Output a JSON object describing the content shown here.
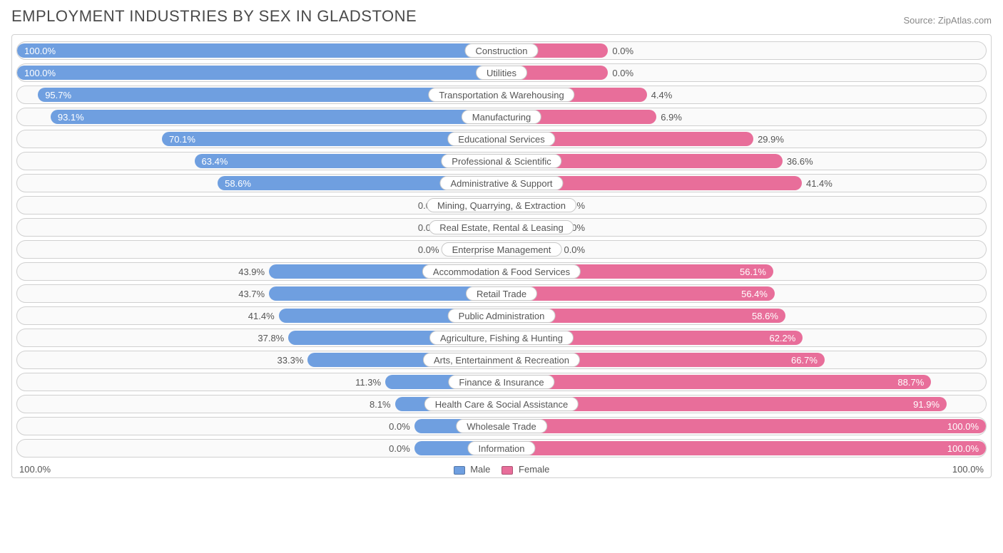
{
  "title": "EMPLOYMENT INDUSTRIES BY SEX IN GLADSTONE",
  "source": "Source: ZipAtlas.com",
  "colors": {
    "male": "#6f9fe0",
    "female": "#e86e9a",
    "border": "#d0d0d0",
    "bg": "#fafafa",
    "text": "#555555"
  },
  "axis": {
    "left": "100.0%",
    "right": "100.0%"
  },
  "legend": {
    "male": "Male",
    "female": "Female"
  },
  "default_bar_pct": 12,
  "categories": [
    {
      "name": "Construction",
      "male": 100.0,
      "female": 0.0,
      "female_bar": 22
    },
    {
      "name": "Utilities",
      "male": 100.0,
      "female": 0.0,
      "female_bar": 22
    },
    {
      "name": "Transportation & Warehousing",
      "male": 95.7,
      "female": 4.4,
      "female_bar": 30
    },
    {
      "name": "Manufacturing",
      "male": 93.1,
      "female": 6.9,
      "female_bar": 32
    },
    {
      "name": "Educational Services",
      "male": 70.1,
      "female": 29.9,
      "female_bar": 52
    },
    {
      "name": "Professional & Scientific",
      "male": 63.4,
      "female": 36.6,
      "female_bar": 58
    },
    {
      "name": "Administrative & Support",
      "male": 58.6,
      "female": 41.4,
      "female_bar": 62
    },
    {
      "name": "Mining, Quarrying, & Extraction",
      "male": 0.0,
      "female": 0.0
    },
    {
      "name": "Real Estate, Rental & Leasing",
      "male": 0.0,
      "female": 0.0
    },
    {
      "name": "Enterprise Management",
      "male": 0.0,
      "female": 0.0
    },
    {
      "name": "Accommodation & Food Services",
      "male": 43.9,
      "female": 56.1,
      "male_bar": 48
    },
    {
      "name": "Retail Trade",
      "male": 43.7,
      "female": 56.4,
      "male_bar": 48
    },
    {
      "name": "Public Administration",
      "male": 41.4,
      "female": 58.6,
      "male_bar": 46
    },
    {
      "name": "Agriculture, Fishing & Hunting",
      "male": 37.8,
      "female": 62.2,
      "male_bar": 44
    },
    {
      "name": "Arts, Entertainment & Recreation",
      "male": 33.3,
      "female": 66.7,
      "male_bar": 40
    },
    {
      "name": "Finance & Insurance",
      "male": 11.3,
      "female": 88.7,
      "male_bar": 24
    },
    {
      "name": "Health Care & Social Assistance",
      "male": 8.1,
      "female": 91.9,
      "male_bar": 22
    },
    {
      "name": "Wholesale Trade",
      "male": 0.0,
      "female": 100.0,
      "male_bar": 18
    },
    {
      "name": "Information",
      "male": 0.0,
      "female": 100.0,
      "male_bar": 18
    }
  ]
}
